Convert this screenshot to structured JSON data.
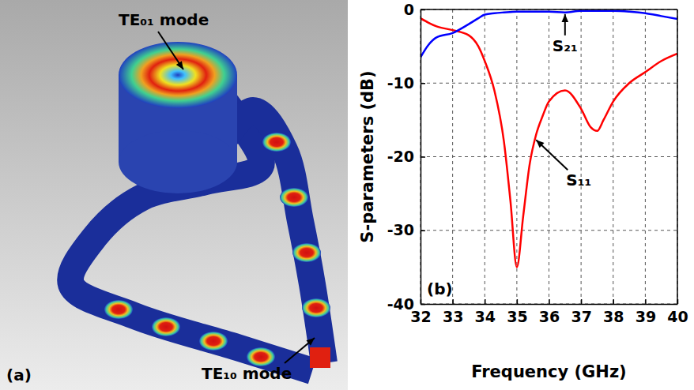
{
  "chart_data": {
    "type": "line",
    "panel_label": "(b)",
    "x_label": "Frequency (GHz)",
    "y_label": "S-parameters (dB)",
    "x": [
      32,
      32.25,
      32.5,
      33,
      33.5,
      33.8,
      34,
      34.3,
      34.6,
      34.8,
      35,
      35.2,
      35.4,
      35.6,
      35.8,
      36,
      36.5,
      37,
      37.3,
      37.5,
      37.7,
      38,
      38.5,
      39,
      39.5,
      40
    ],
    "series": [
      {
        "name": "S₁₁",
        "color": "#ff0000",
        "values": [
          -1.2,
          -1.8,
          -2.3,
          -2.8,
          -3.5,
          -5,
          -7,
          -11,
          -18,
          -26,
          -35,
          -28,
          -21,
          -17,
          -14.5,
          -12.5,
          -11,
          -13.5,
          -16,
          -16.5,
          -15,
          -12.5,
          -10,
          -8.5,
          -7,
          -6
        ]
      },
      {
        "name": "S₂₁",
        "color": "#0000ff",
        "values": [
          -6.5,
          -4.8,
          -3.8,
          -3.2,
          -2.0,
          -1.2,
          -0.7,
          -0.5,
          -0.4,
          -0.35,
          -0.3,
          -0.3,
          -0.3,
          -0.3,
          -0.3,
          -0.3,
          -0.4,
          -0.2,
          -0.2,
          -0.2,
          -0.2,
          -0.2,
          -0.3,
          -0.5,
          -0.9,
          -1.3
        ]
      }
    ],
    "xlim": [
      32,
      40
    ],
    "xticks": [
      32,
      33,
      34,
      35,
      36,
      37,
      38,
      39,
      40
    ],
    "ylim": [
      -40,
      0
    ],
    "yticks": [
      -40,
      -30,
      -20,
      -10,
      0
    ],
    "grid": true,
    "annotations": [
      {
        "text": "S₂₁",
        "x": 36.5,
        "y": -0.3
      },
      {
        "text": "S₁₁",
        "x": 35.6,
        "y": -17.5
      }
    ]
  },
  "panel_a": {
    "label": "(a)",
    "annotations": [
      "TE₀₁ mode",
      "TE₁₀ mode"
    ]
  }
}
